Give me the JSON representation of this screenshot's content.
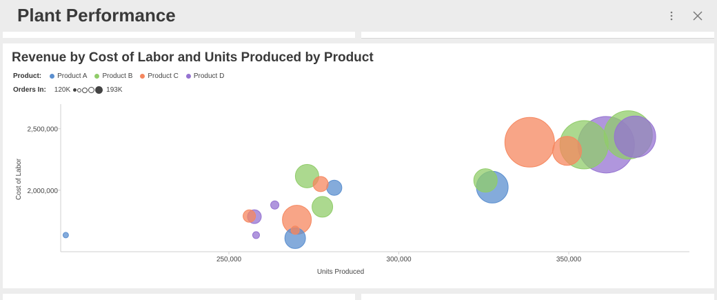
{
  "header": {
    "title": "Plant Performance",
    "more_icon": "more-vertical-icon",
    "close_icon": "close-icon"
  },
  "legend": {
    "product_label": "Product:",
    "products": [
      {
        "name": "Product A",
        "color": "#5b8fcf"
      },
      {
        "name": "Product B",
        "color": "#90cc69"
      },
      {
        "name": "Product C",
        "color": "#f5875f"
      },
      {
        "name": "Product D",
        "color": "#9573d1"
      }
    ],
    "size_label": "Orders In:",
    "size_min": "120K",
    "size_max": "193K"
  },
  "chart_data": {
    "type": "bubble",
    "title": "Revenue by Cost of Labor and Units Produced by Product",
    "xlabel": "Units Produced",
    "ylabel": "Cost of Labor",
    "xlim": [
      200500,
      385500
    ],
    "ylim": [
      1500000,
      2700000
    ],
    "x_ticks": [
      250000,
      300000,
      350000
    ],
    "x_tick_labels": [
      "250,000",
      "300,000",
      "350,000"
    ],
    "y_ticks": [
      2000000,
      2500000
    ],
    "y_tick_labels": [
      "2,000,000",
      "2,500,000"
    ],
    "size_legend": {
      "min_label": "120K",
      "max_label": "193K"
    },
    "series": [
      {
        "name": "Product A",
        "color": "#5b8fcf",
        "points": [
          {
            "x": 202000,
            "y": 1635000,
            "r": 4
          },
          {
            "x": 269500,
            "y": 1610000,
            "r": 15
          },
          {
            "x": 281000,
            "y": 2020000,
            "r": 11
          },
          {
            "x": 327500,
            "y": 2025000,
            "r": 23
          }
        ]
      },
      {
        "name": "Product B",
        "color": "#90cc69",
        "points": [
          {
            "x": 273000,
            "y": 2115000,
            "r": 17
          },
          {
            "x": 277500,
            "y": 1865000,
            "r": 15
          },
          {
            "x": 325500,
            "y": 2080000,
            "r": 17
          },
          {
            "x": 354500,
            "y": 2370000,
            "r": 35
          },
          {
            "x": 367500,
            "y": 2450000,
            "r": 35
          }
        ]
      },
      {
        "name": "Product C",
        "color": "#f5875f",
        "points": [
          {
            "x": 256000,
            "y": 1790000,
            "r": 9
          },
          {
            "x": 269500,
            "y": 1675000,
            "r": 6
          },
          {
            "x": 270000,
            "y": 1760000,
            "r": 21
          },
          {
            "x": 277000,
            "y": 2050000,
            "r": 11
          },
          {
            "x": 338500,
            "y": 2390000,
            "r": 36
          },
          {
            "x": 349500,
            "y": 2320000,
            "r": 21
          }
        ]
      },
      {
        "name": "Product D",
        "color": "#9573d1",
        "points": [
          {
            "x": 257500,
            "y": 1785000,
            "r": 10
          },
          {
            "x": 258000,
            "y": 1635000,
            "r": 5
          },
          {
            "x": 263500,
            "y": 1880000,
            "r": 6
          },
          {
            "x": 361000,
            "y": 2370000,
            "r": 41
          },
          {
            "x": 369500,
            "y": 2435000,
            "r": 30
          }
        ]
      }
    ]
  }
}
